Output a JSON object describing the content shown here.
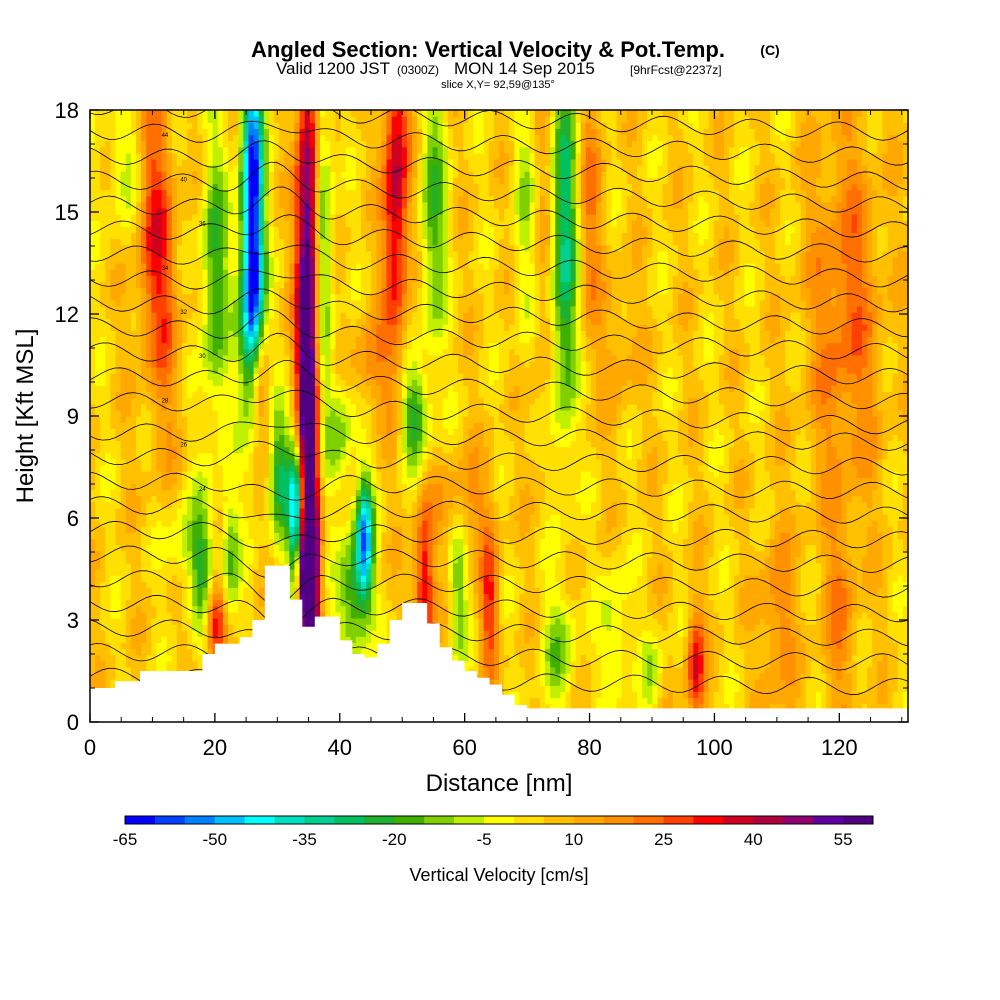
{
  "chart_data": {
    "type": "heatmap",
    "title": "Angled Section: Vertical Velocity & Pot.Temp.",
    "title_mark": "(C)",
    "subtitle_prefix": "Valid 1200 JST",
    "subtitle_utc": "(0300Z)",
    "subtitle_date": "MON 14 Sep 2015",
    "subtitle_fcst": "[9hrFcst@2237z]",
    "slice_label": "slice X,Y= 92,59@135°",
    "xlabel": "Distance [nm]",
    "ylabel": "Height [Kft MSL]",
    "xlim": [
      0,
      131
    ],
    "ylim": [
      0,
      18
    ],
    "x_ticks": [
      0,
      20,
      40,
      60,
      80,
      100,
      120
    ],
    "y_ticks": [
      0,
      3,
      6,
      9,
      12,
      15,
      18
    ],
    "colorbar": {
      "label": "Vertical Velocity [cm/s]",
      "min": -65,
      "max": 60,
      "step": 5,
      "tick_labels": [
        -65,
        -50,
        -35,
        -20,
        -5,
        10,
        25,
        40,
        55
      ],
      "colors": [
        "#0000ff",
        "#0040ff",
        "#0080ff",
        "#00c0ff",
        "#00ffff",
        "#00e0c0",
        "#00d090",
        "#00c060",
        "#20b030",
        "#40b000",
        "#80d000",
        "#c0f000",
        "#ffff00",
        "#ffe000",
        "#ffc000",
        "#ffa800",
        "#ff9000",
        "#ff7000",
        "#ff4000",
        "#ff0000",
        "#d00020",
        "#b00040",
        "#900070",
        "#6000a0",
        "#500080"
      ]
    },
    "features": [
      {
        "name": "updraft",
        "x": 35,
        "ymin": 2.5,
        "ymax": 18,
        "value": 55
      },
      {
        "name": "downdraft",
        "x": 26,
        "ymin": 10,
        "ymax": 18,
        "value": -50
      },
      {
        "name": "downdraft",
        "x": 33,
        "ymin": 4,
        "ymax": 7,
        "value": -45
      },
      {
        "name": "downdraft",
        "x": 44,
        "ymin": 4,
        "ymax": 6.5,
        "value": -35
      },
      {
        "name": "updraft",
        "x": 49,
        "ymin": 12,
        "ymax": 18,
        "value": 30
      }
    ],
    "terrain": [
      [
        0,
        1
      ],
      [
        4,
        1.2
      ],
      [
        8,
        1.5
      ],
      [
        14,
        1.5
      ],
      [
        18,
        2
      ],
      [
        20,
        2.3
      ],
      [
        22,
        2.3
      ],
      [
        24,
        2.5
      ],
      [
        26,
        3
      ],
      [
        28,
        4.6
      ],
      [
        30,
        4.6
      ],
      [
        32,
        3.6
      ],
      [
        34,
        2.8
      ],
      [
        36,
        3.1
      ],
      [
        38,
        3.1
      ],
      [
        40,
        2.4
      ],
      [
        42,
        2
      ],
      [
        44,
        1.9
      ],
      [
        46,
        2.3
      ],
      [
        48,
        3
      ],
      [
        50,
        3.5
      ],
      [
        52,
        3.5
      ],
      [
        54,
        2.9
      ],
      [
        56,
        2.2
      ],
      [
        58,
        1.8
      ],
      [
        60,
        1.5
      ],
      [
        62,
        1.3
      ],
      [
        64,
        1.1
      ],
      [
        66,
        0.8
      ],
      [
        68,
        0.5
      ],
      [
        70,
        0.4
      ],
      [
        131,
        0.4
      ]
    ],
    "contour_labels": [
      "44",
      "40",
      "36",
      "34",
      "32",
      "30",
      "28",
      "26",
      "24"
    ]
  }
}
